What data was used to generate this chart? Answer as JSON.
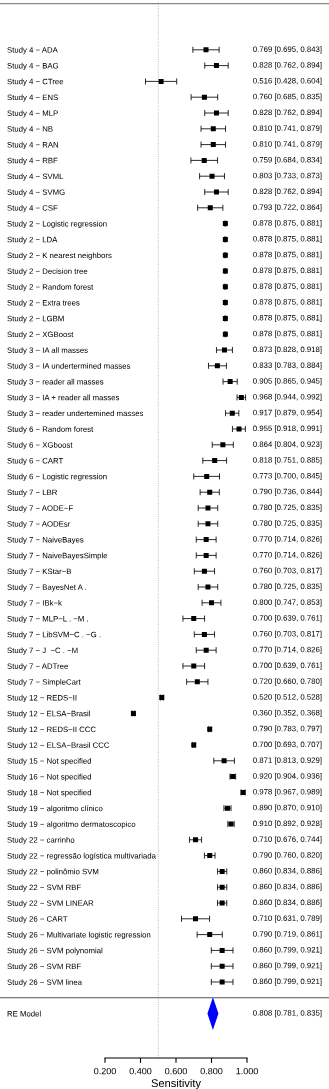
{
  "chart_data": {
    "type": "scatter",
    "orientation": "horizontal",
    "xlabel": "Sensitivity",
    "categories": [
      "Study 4 − ADA",
      "Study 4 − BAG",
      "Study 4 − CTree",
      "Study 4 − ENS",
      "Study 4 − MLP",
      "Study 4 − NB",
      "Study 4 − RAN",
      "Study 4 − RBF",
      "Study 4 − SVML",
      "Study 4 − SVMG",
      "Study 4 − CSF",
      "Study 2 − Logistic regression",
      "Study 2 − LDA",
      "Study 2 − K nearest neighbors",
      "Study 2 − Decision tree",
      "Study 2 − Random forest",
      "Study 2 − Extra trees",
      "Study 2 − LGBM",
      "Study 2 − XGBoost",
      "Study 3 − IA all masses",
      "Study 3 − IA undertermined masses",
      "Study 3 − reader all masses",
      "Study 3 − IA + reader all masses",
      "Study 3 − reader undertemined masses",
      "Study 6 − Random forest",
      "Study 6 − XGboost",
      "Study 6 − CART",
      "Study 6 − Logistic regression",
      "Study 7 − LBR",
      "Study 7 − AODE−F",
      "Study 7 − AODEsr",
      "Study 7 − NaiveBayes",
      "Study 7 − NaiveBayesSimple",
      "Study 7 − KStar−B",
      "Study 7 − BayesNet A .",
      "Study 7 − IBk−k",
      "Study 7 − MLP−L . −M .",
      "Study 7 − LibSVM−C . −G .",
      "Study 7 − J  −C . −M",
      "Study 7 − ADTree",
      "Study 7 − SimpleCart",
      "Study 12 − REDS−II",
      "Study 12 − ELSA−Brasil",
      "Study 12 − REDS−II CCC",
      "Study 12 − ELSA−Brasil CCC",
      "Study 15 − Not specified",
      "Study 16 − Not specified",
      "Study 18 − Not specified",
      "Study 19 − algoritmo clínico",
      "Study 19 − algoritmo dermatoscopico",
      "Study 22 − carrinho",
      "Study 22 − regressão logística multivariada",
      "Study 22 − polinômio SVM",
      "Study 22 − SVM RBF",
      "Study 22 − SVM LINEAR",
      "Study 26 − CART",
      "Study 26 − Multivariate logistic regression",
      "Study 26 − SVM polynomial",
      "Study 26 − SVM RBF",
      "Study 26 − SVM linea",
      "RE Model"
    ],
    "series": [
      {
        "color": "#000000",
        "marker": "square",
        "values": [
          0.769,
          0.828,
          0.516,
          0.76,
          0.828,
          0.81,
          0.81,
          0.759,
          0.803,
          0.828,
          0.793,
          0.878,
          0.878,
          0.878,
          0.878,
          0.878,
          0.878,
          0.878,
          0.878,
          0.873,
          0.833,
          0.905,
          0.968,
          0.917,
          0.955,
          0.864,
          0.818,
          0.773,
          0.79,
          0.78,
          0.78,
          0.77,
          0.77,
          0.76,
          0.78,
          0.8,
          0.7,
          0.76,
          0.77,
          0.7,
          0.72,
          0.52,
          0.36,
          0.79,
          0.7,
          0.871,
          0.92,
          0.978,
          0.89,
          0.91,
          0.71,
          0.79,
          0.86,
          0.86,
          0.86,
          0.71,
          0.79,
          0.86,
          0.86,
          0.86,
          null
        ],
        "errors": [
          [
            0.695,
            0.843
          ],
          [
            0.762,
            0.894
          ],
          [
            0.428,
            0.604
          ],
          [
            0.685,
            0.835
          ],
          [
            0.762,
            0.894
          ],
          [
            0.741,
            0.879
          ],
          [
            0.741,
            0.879
          ],
          [
            0.684,
            0.834
          ],
          [
            0.733,
            0.873
          ],
          [
            0.762,
            0.894
          ],
          [
            0.722,
            0.864
          ],
          [
            0.875,
            0.881
          ],
          [
            0.875,
            0.881
          ],
          [
            0.875,
            0.881
          ],
          [
            0.875,
            0.881
          ],
          [
            0.875,
            0.881
          ],
          [
            0.875,
            0.881
          ],
          [
            0.875,
            0.881
          ],
          [
            0.875,
            0.881
          ],
          [
            0.828,
            0.918
          ],
          [
            0.783,
            0.884
          ],
          [
            0.865,
            0.945
          ],
          [
            0.944,
            0.992
          ],
          [
            0.879,
            0.954
          ],
          [
            0.918,
            0.991
          ],
          [
            0.804,
            0.923
          ],
          [
            0.751,
            0.885
          ],
          [
            0.7,
            0.845
          ],
          [
            0.736,
            0.844
          ],
          [
            0.725,
            0.835
          ],
          [
            0.725,
            0.835
          ],
          [
            0.714,
            0.826
          ],
          [
            0.714,
            0.826
          ],
          [
            0.703,
            0.817
          ],
          [
            0.725,
            0.835
          ],
          [
            0.747,
            0.853
          ],
          [
            0.639,
            0.761
          ],
          [
            0.703,
            0.817
          ],
          [
            0.714,
            0.826
          ],
          [
            0.639,
            0.761
          ],
          [
            0.66,
            0.78
          ],
          [
            0.512,
            0.528
          ],
          [
            0.352,
            0.368
          ],
          [
            0.783,
            0.797
          ],
          [
            0.693,
            0.707
          ],
          [
            0.813,
            0.929
          ],
          [
            0.904,
            0.936
          ],
          [
            0.967,
            0.989
          ],
          [
            0.87,
            0.91
          ],
          [
            0.892,
            0.928
          ],
          [
            0.676,
            0.744
          ],
          [
            0.76,
            0.82
          ],
          [
            0.834,
            0.886
          ],
          [
            0.834,
            0.886
          ],
          [
            0.834,
            0.886
          ],
          [
            0.631,
            0.789
          ],
          [
            0.719,
            0.861
          ],
          [
            0.799,
            0.921
          ],
          [
            0.799,
            0.921
          ],
          [
            0.799,
            0.921
          ],
          null
        ]
      },
      {
        "color": "#0000ff",
        "marker": "diamond",
        "values": [
          null,
          null,
          null,
          null,
          null,
          null,
          null,
          null,
          null,
          null,
          null,
          null,
          null,
          null,
          null,
          null,
          null,
          null,
          null,
          null,
          null,
          null,
          null,
          null,
          null,
          null,
          null,
          null,
          null,
          null,
          null,
          null,
          null,
          null,
          null,
          null,
          null,
          null,
          null,
          null,
          null,
          null,
          null,
          null,
          null,
          null,
          null,
          null,
          null,
          null,
          null,
          null,
          null,
          null,
          null,
          null,
          null,
          null,
          null,
          null,
          0.808
        ],
        "errors": [
          null,
          null,
          null,
          null,
          null,
          null,
          null,
          null,
          null,
          null,
          null,
          null,
          null,
          null,
          null,
          null,
          null,
          null,
          null,
          null,
          null,
          null,
          null,
          null,
          null,
          null,
          null,
          null,
          null,
          null,
          null,
          null,
          null,
          null,
          null,
          null,
          null,
          null,
          null,
          null,
          null,
          null,
          null,
          null,
          null,
          null,
          null,
          null,
          null,
          null,
          null,
          null,
          null,
          null,
          null,
          null,
          null,
          null,
          null,
          null,
          [
            0.781,
            0.835
          ]
        ]
      }
    ],
    "value_labels": [
      "0.769 [0.695, 0.843]",
      "0.828 [0.762, 0.894]",
      "0.516 [0.428, 0.604]",
      "0.760 [0.685, 0.835]",
      "0.828 [0.762, 0.894]",
      "0.810 [0.741, 0.879]",
      "0.810 [0.741, 0.879]",
      "0.759 [0.684, 0.834]",
      "0.803 [0.733, 0.873]",
      "0.828 [0.762, 0.894]",
      "0.793 [0.722, 0.864]",
      "0.878 [0.875, 0.881]",
      "0.878 [0.875, 0.881]",
      "0.878 [0.875, 0.881]",
      "0.878 [0.875, 0.881]",
      "0.878 [0.875, 0.881]",
      "0.878 [0.875, 0.881]",
      "0.878 [0.875, 0.881]",
      "0.878 [0.875, 0.881]",
      "0.873 [0.828, 0.918]",
      "0.833 [0.783, 0.884]",
      "0.905 [0.865, 0.945]",
      "0.968 [0.944, 0.992]",
      "0.917 [0.879, 0.954]",
      "0.955 [0.918, 0.991]",
      "0.864 [0.804, 0.923]",
      "0.818 [0.751, 0.885]",
      "0.773 [0.700, 0.845]",
      "0.790 [0.736, 0.844]",
      "0.780 [0.725, 0.835]",
      "0.780 [0.725, 0.835]",
      "0.770 [0.714, 0.826]",
      "0.770 [0.714, 0.826]",
      "0.760 [0.703, 0.817]",
      "0.780 [0.725, 0.835]",
      "0.800 [0.747, 0.853]",
      "0.700 [0.639, 0.761]",
      "0.760 [0.703, 0.817]",
      "0.770 [0.714, 0.826]",
      "0.700 [0.639, 0.761]",
      "0.720 [0.660, 0.780]",
      "0.520 [0.512, 0.528]",
      "0.360 [0.352, 0.368]",
      "0.790 [0.783, 0.797]",
      "0.700 [0.693, 0.707]",
      "0.871 [0.813, 0.929]",
      "0.920 [0.904, 0.936]",
      "0.978 [0.967, 0.989]",
      "0.890 [0.870, 0.910]",
      "0.910 [0.892, 0.928]",
      "0.710 [0.676, 0.744]",
      "0.790 [0.760, 0.820]",
      "0.860 [0.834, 0.886]",
      "0.860 [0.834, 0.886]",
      "0.860 [0.834, 0.886]",
      "0.710 [0.631, 0.789]",
      "0.790 [0.719, 0.861]",
      "0.860 [0.799, 0.921]",
      "0.860 [0.799, 0.921]",
      "0.860 [0.799, 0.921]",
      "0.808 [0.781, 0.835]"
    ],
    "xlim": [
      0.2,
      1.0
    ],
    "xticks": [
      {
        "value": 0.2,
        "label": "0.200"
      },
      {
        "value": 0.4,
        "label": "0.400"
      },
      {
        "value": 0.6,
        "label": "0.600"
      },
      {
        "value": 0.8,
        "label": "0.800"
      },
      {
        "value": 1.0,
        "label": "1.000"
      }
    ],
    "ref_lines": [
      {
        "axis": "x",
        "value": 0.5,
        "color": "#a0a0a0",
        "line_style": "dotted"
      }
    ],
    "grid": false,
    "legend": false
  }
}
